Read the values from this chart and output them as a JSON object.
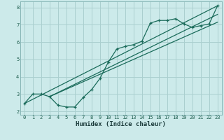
{
  "xlabel": "Humidex (Indice chaleur)",
  "bg_color": "#cceaea",
  "grid_color": "#aacfcf",
  "line_color": "#1a6b5a",
  "xlim": [
    -0.5,
    23.5
  ],
  "ylim": [
    1.8,
    8.35
  ],
  "xticks": [
    0,
    1,
    2,
    3,
    4,
    5,
    6,
    7,
    8,
    9,
    10,
    11,
    12,
    13,
    14,
    15,
    16,
    17,
    18,
    19,
    20,
    21,
    22,
    23
  ],
  "yticks": [
    2,
    3,
    4,
    5,
    6,
    7,
    8
  ],
  "data_line": [
    [
      0,
      2.45
    ],
    [
      1,
      3.0
    ],
    [
      2,
      3.0
    ],
    [
      3,
      2.85
    ],
    [
      4,
      2.35
    ],
    [
      5,
      2.25
    ],
    [
      6,
      2.25
    ],
    [
      7,
      2.8
    ],
    [
      8,
      3.25
    ],
    [
      9,
      3.9
    ],
    [
      10,
      4.85
    ],
    [
      11,
      5.6
    ],
    [
      12,
      5.75
    ],
    [
      13,
      5.85
    ],
    [
      14,
      6.05
    ],
    [
      15,
      7.1
    ],
    [
      16,
      7.25
    ],
    [
      17,
      7.25
    ],
    [
      18,
      7.35
    ],
    [
      19,
      7.05
    ],
    [
      20,
      6.85
    ],
    [
      21,
      6.95
    ],
    [
      22,
      7.05
    ],
    [
      23,
      8.1
    ]
  ],
  "line1": [
    [
      0,
      2.45
    ],
    [
      23,
      8.1
    ]
  ],
  "line2": [
    [
      3,
      2.85
    ],
    [
      23,
      7.6
    ]
  ],
  "line3": [
    [
      3,
      2.85
    ],
    [
      23,
      7.15
    ]
  ]
}
